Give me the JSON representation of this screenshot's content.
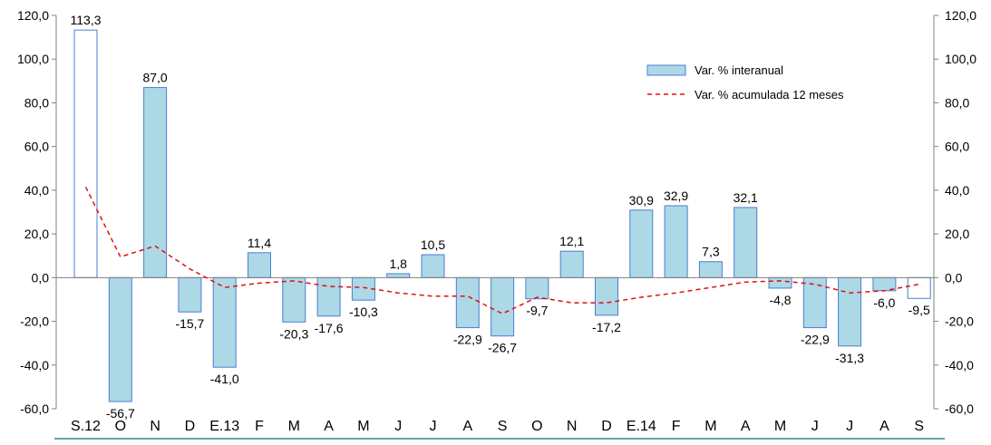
{
  "chart_data": {
    "type": "bar",
    "categories": [
      "S.12",
      "O",
      "N",
      "D",
      "E.13",
      "F",
      "M",
      "A",
      "M",
      "J",
      "J",
      "A",
      "S",
      "O",
      "N",
      "D",
      "E.14",
      "F",
      "M",
      "A",
      "M",
      "J",
      "J",
      "A",
      "S"
    ],
    "series": [
      {
        "name": "Var. % interanual",
        "type": "bar",
        "color": "#add8e6",
        "border_color": "#4a7fd0",
        "values": [
          113.3,
          -56.7,
          87.0,
          -15.7,
          -41.0,
          11.4,
          -20.3,
          -17.6,
          -10.3,
          1.8,
          10.5,
          -22.9,
          -26.7,
          -9.7,
          12.1,
          -17.2,
          30.9,
          32.9,
          7.3,
          32.1,
          -4.8,
          -22.9,
          -31.3,
          -6.0,
          -9.5
        ],
        "labels": [
          "113,3",
          "-56,7",
          "87,0",
          "-15,7",
          "-41,0",
          "11,4",
          "-20,3",
          "-17,6",
          "-10,3",
          "1,8",
          "10,5",
          "-22,9",
          "-26,7",
          "-9,7",
          "12,1",
          "-17,2",
          "30,9",
          "32,9",
          "7,3",
          "32,1",
          "-4,8",
          "-22,9",
          "-31,3",
          "-6,0",
          "-9,5"
        ],
        "unfilled_bars": [
          "S.12",
          "S"
        ]
      },
      {
        "name": "Var. % acumulada 12 meses",
        "type": "line",
        "style": "dashed",
        "color": "#e01010",
        "values": [
          41.5,
          9.5,
          14.5,
          4.0,
          -4.5,
          -2.5,
          -1.5,
          -4.0,
          -4.5,
          -7.0,
          -8.5,
          -8.5,
          -16.5,
          -9.0,
          -11.5,
          -11.5,
          -9.0,
          -7.0,
          -4.5,
          -2.0,
          -1.5,
          -3.0,
          -7.0,
          -6.0,
          -3.0
        ]
      }
    ],
    "ylim": [
      -60,
      120
    ],
    "y_ticks": [
      "-60,0",
      "-40,0",
      "-20,0",
      "0,0",
      "20,0",
      "40,0",
      "60,0",
      "80,0",
      "100,0",
      "120,0"
    ],
    "y_right_ticks": [
      "-60,0",
      "-40,0",
      "-20,0",
      "0,0",
      "20,0",
      "40,0",
      "60,0",
      "80,0",
      "100,0",
      "120,0"
    ],
    "grid": false,
    "legend_position": "top-right"
  }
}
